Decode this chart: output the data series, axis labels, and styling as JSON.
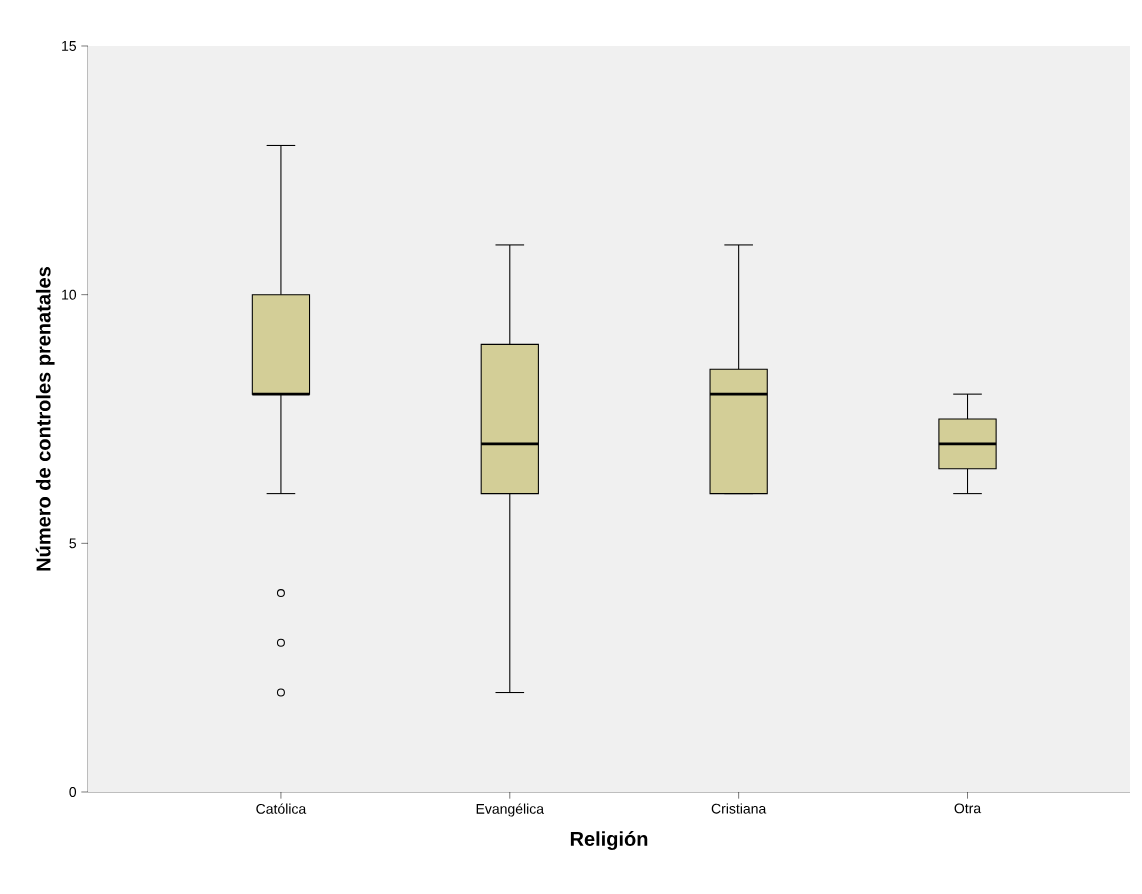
{
  "chart_data": {
    "type": "box",
    "xlabel": "Religión",
    "ylabel": "Número de controles prenatales",
    "categories": [
      "Católica",
      "Evangélica",
      "Cristiana",
      "Otra"
    ],
    "color": "#d3ce97",
    "boxes": [
      {
        "low": 6,
        "q1": 8,
        "median": 8,
        "q3": 10,
        "high": 13,
        "outliers": [
          4,
          3,
          2
        ]
      },
      {
        "low": 2,
        "q1": 6,
        "median": 7,
        "q3": 9,
        "high": 11
      },
      {
        "low": 6,
        "q1": 6,
        "median": 8,
        "q3": 8.5,
        "high": 11
      },
      {
        "low": 6,
        "q1": 6.5,
        "median": 7,
        "q3": 7.5,
        "high": 8
      }
    ],
    "ylim": [
      0,
      15
    ],
    "yticks": [
      0,
      5,
      10,
      15
    ]
  }
}
